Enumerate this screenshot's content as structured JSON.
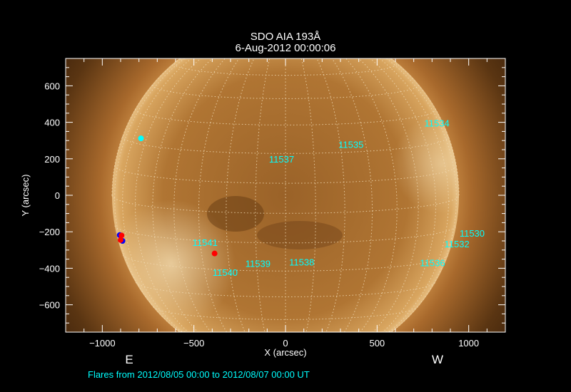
{
  "chart_data": {
    "type": "scatter",
    "title": "SDO AIA 193Å",
    "subtitle": "6-Aug-2012 00:00:06",
    "xlabel": "X (arcsec)",
    "ylabel": "Y (arcsec)",
    "xlim": [
      -1200,
      1200
    ],
    "ylim": [
      -750,
      750
    ],
    "xticks": [
      -1000,
      -500,
      0,
      500,
      1000
    ],
    "yticks": [
      -600,
      -400,
      -200,
      0,
      200,
      400,
      600
    ],
    "grid": "heliographic dotted grid",
    "east_label": "E",
    "west_label": "W",
    "footer": "Flares from 2012/08/05 00:00 to 2012/08/07 00:00 UT",
    "colors": {
      "background": "#000000",
      "axes": "#ffffff",
      "labels": "#00ffff",
      "flare_red": "#ff0000",
      "flare_blue": "#0000ff",
      "flare_cyan": "#00ffff"
    },
    "active_regions": [
      {
        "label": "11541",
        "x": -508,
        "y": -253
      },
      {
        "label": "11540",
        "x": -398,
        "y": -417
      },
      {
        "label": "11539",
        "x": -219,
        "y": -370
      },
      {
        "label": "11538",
        "x": 20,
        "y": -362
      },
      {
        "label": "11536",
        "x": 734,
        "y": -366
      },
      {
        "label": "11532",
        "x": 867,
        "y": -261
      },
      {
        "label": "11530",
        "x": 950,
        "y": -203
      },
      {
        "label": "11534",
        "x": 758,
        "y": 401
      },
      {
        "label": "11535",
        "x": 289,
        "y": 284
      },
      {
        "label": "11537",
        "x": -90,
        "y": 203
      }
    ],
    "flares": [
      {
        "x": -905,
        "y": -218,
        "color": "blue"
      },
      {
        "x": -890,
        "y": -250,
        "color": "blue"
      },
      {
        "x": -895,
        "y": -220,
        "color": "red"
      },
      {
        "x": -900,
        "y": -245,
        "color": "red"
      },
      {
        "x": -387,
        "y": -319,
        "color": "red"
      },
      {
        "x": -789,
        "y": 312,
        "color": "cyan"
      }
    ]
  }
}
